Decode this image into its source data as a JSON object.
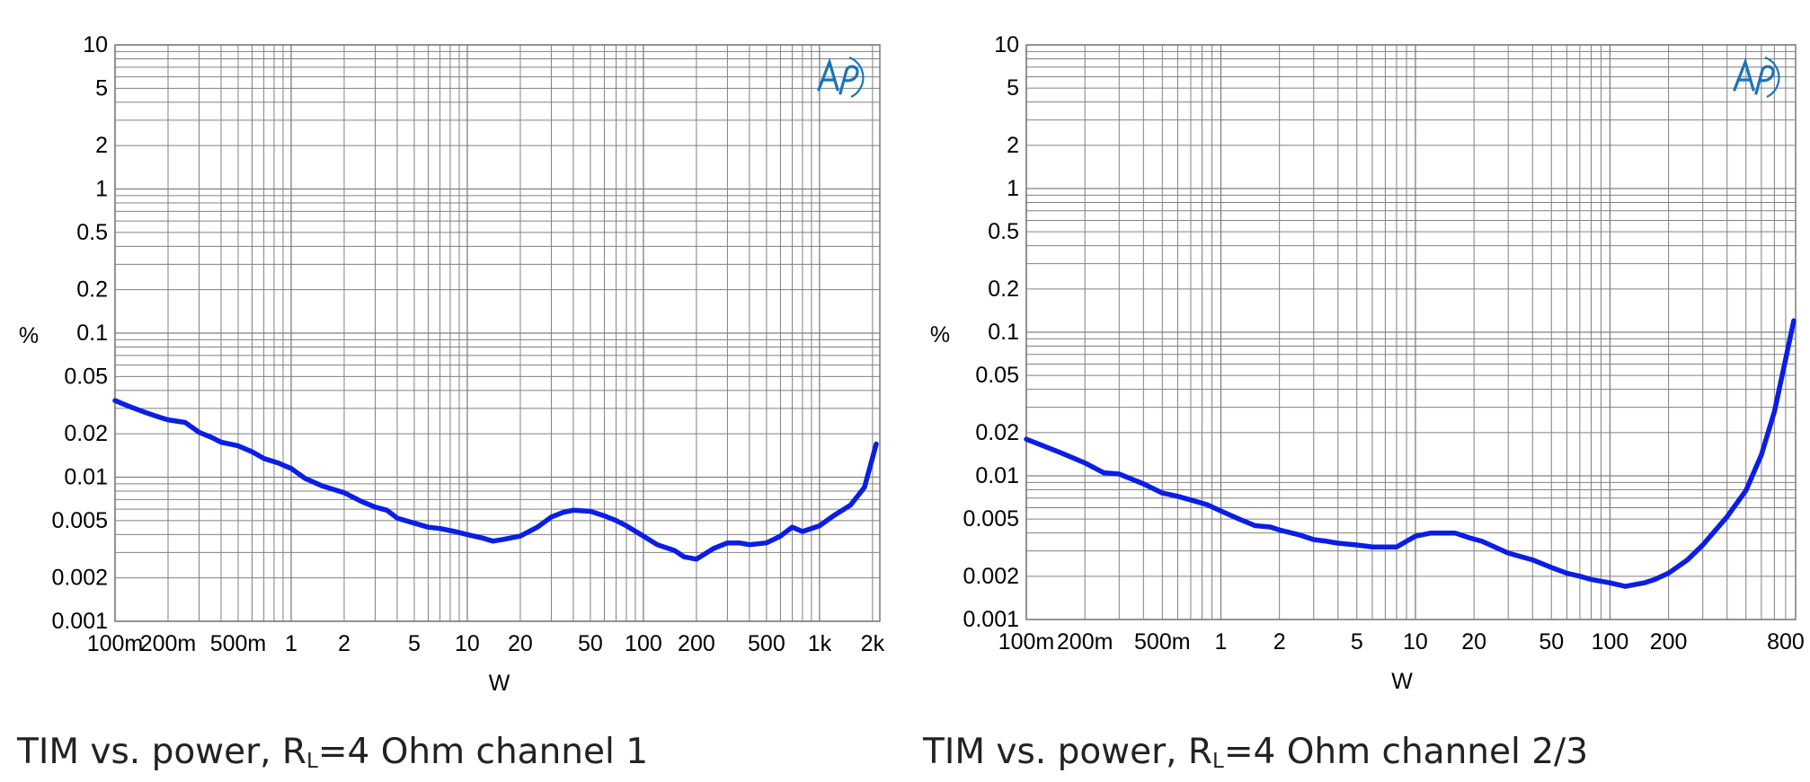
{
  "chart_data": [
    {
      "type": "line",
      "title": "",
      "xlabel": "W",
      "ylabel": "%",
      "x_scale": "log",
      "y_scale": "log",
      "xlim": [
        0.1,
        2200
      ],
      "ylim": [
        0.001,
        10
      ],
      "grid": true,
      "logo": "ap-logo",
      "x_ticks": [
        {
          "value": 0.1,
          "label": "100m"
        },
        {
          "value": 0.2,
          "label": "200m"
        },
        {
          "value": 0.5,
          "label": "500m"
        },
        {
          "value": 1,
          "label": "1"
        },
        {
          "value": 2,
          "label": "2"
        },
        {
          "value": 5,
          "label": "5"
        },
        {
          "value": 10,
          "label": "10"
        },
        {
          "value": 20,
          "label": "20"
        },
        {
          "value": 50,
          "label": "50"
        },
        {
          "value": 100,
          "label": "100"
        },
        {
          "value": 200,
          "label": "200"
        },
        {
          "value": 500,
          "label": "500"
        },
        {
          "value": 1000,
          "label": "1k"
        },
        {
          "value": 2000,
          "label": "2k"
        }
      ],
      "y_ticks": [
        {
          "value": 10,
          "label": "10"
        },
        {
          "value": 5,
          "label": "5"
        },
        {
          "value": 2,
          "label": "2"
        },
        {
          "value": 1,
          "label": "1"
        },
        {
          "value": 0.5,
          "label": "0.5"
        },
        {
          "value": 0.2,
          "label": "0.2"
        },
        {
          "value": 0.1,
          "label": "0.1"
        },
        {
          "value": 0.05,
          "label": "0.05"
        },
        {
          "value": 0.02,
          "label": "0.02"
        },
        {
          "value": 0.01,
          "label": "0.01"
        },
        {
          "value": 0.005,
          "label": "0.005"
        },
        {
          "value": 0.002,
          "label": "0.002"
        },
        {
          "value": 0.001,
          "label": "0.001"
        }
      ],
      "series": [
        {
          "color": "#0a1ee6",
          "x": [
            0.1,
            0.12,
            0.15,
            0.18,
            0.2,
            0.25,
            0.3,
            0.35,
            0.4,
            0.5,
            0.6,
            0.7,
            0.85,
            1.0,
            1.2,
            1.5,
            2.0,
            2.5,
            3.0,
            3.5,
            4.0,
            5.0,
            6.0,
            7.0,
            8.5,
            10,
            12,
            14,
            16,
            20,
            25,
            30,
            35,
            40,
            50,
            60,
            70,
            80,
            100,
            120,
            150,
            170,
            200,
            250,
            300,
            350,
            400,
            500,
            600,
            700,
            800,
            1000,
            1200,
            1500,
            1800,
            2100
          ],
          "values": [
            0.034,
            0.031,
            0.028,
            0.026,
            0.025,
            0.024,
            0.0205,
            0.019,
            0.0175,
            0.0165,
            0.015,
            0.0135,
            0.0125,
            0.0115,
            0.0098,
            0.0087,
            0.0078,
            0.0068,
            0.0062,
            0.0059,
            0.0052,
            0.0048,
            0.0045,
            0.0044,
            0.0042,
            0.004,
            0.0038,
            0.0036,
            0.0037,
            0.0039,
            0.0045,
            0.0053,
            0.0057,
            0.0059,
            0.0058,
            0.0054,
            0.005,
            0.0046,
            0.0039,
            0.0034,
            0.0031,
            0.0028,
            0.0027,
            0.0032,
            0.0035,
            0.0035,
            0.0034,
            0.0035,
            0.0039,
            0.0045,
            0.0042,
            0.0046,
            0.0054,
            0.0064,
            0.0085,
            0.017
          ]
        }
      ]
    },
    {
      "type": "line",
      "title": "",
      "xlabel": "W",
      "ylabel": "%",
      "x_scale": "log",
      "y_scale": "log",
      "xlim": [
        0.1,
        900
      ],
      "ylim": [
        0.001,
        10
      ],
      "grid": true,
      "logo": "ap-logo",
      "x_ticks": [
        {
          "value": 0.1,
          "label": "100m"
        },
        {
          "value": 0.2,
          "label": "200m"
        },
        {
          "value": 0.5,
          "label": "500m"
        },
        {
          "value": 1,
          "label": "1"
        },
        {
          "value": 2,
          "label": "2"
        },
        {
          "value": 5,
          "label": "5"
        },
        {
          "value": 10,
          "label": "10"
        },
        {
          "value": 20,
          "label": "20"
        },
        {
          "value": 50,
          "label": "50"
        },
        {
          "value": 100,
          "label": "100"
        },
        {
          "value": 200,
          "label": "200"
        },
        {
          "value": 800,
          "label": "800"
        }
      ],
      "y_ticks": [
        {
          "value": 10,
          "label": "10"
        },
        {
          "value": 5,
          "label": "5"
        },
        {
          "value": 2,
          "label": "2"
        },
        {
          "value": 1,
          "label": "1"
        },
        {
          "value": 0.5,
          "label": "0.5"
        },
        {
          "value": 0.2,
          "label": "0.2"
        },
        {
          "value": 0.1,
          "label": "0.1"
        },
        {
          "value": 0.05,
          "label": "0.05"
        },
        {
          "value": 0.02,
          "label": "0.02"
        },
        {
          "value": 0.01,
          "label": "0.01"
        },
        {
          "value": 0.005,
          "label": "0.005"
        },
        {
          "value": 0.002,
          "label": "0.002"
        },
        {
          "value": 0.001,
          "label": "0.001"
        }
      ],
      "series": [
        {
          "color": "#0a1ee6",
          "x": [
            0.1,
            0.15,
            0.2,
            0.25,
            0.3,
            0.4,
            0.5,
            0.6,
            0.7,
            0.85,
            1.0,
            1.2,
            1.5,
            1.8,
            2.0,
            2.5,
            3.0,
            3.5,
            4.0,
            5.0,
            6.0,
            7.0,
            8.0,
            9.0,
            10,
            12,
            14,
            16,
            19,
            22,
            30,
            40,
            50,
            60,
            70,
            80,
            100,
            120,
            150,
            170,
            200,
            250,
            300,
            400,
            500,
            600,
            700,
            800,
            880
          ],
          "values": [
            0.018,
            0.0145,
            0.0123,
            0.0105,
            0.0103,
            0.0088,
            0.0076,
            0.0072,
            0.0068,
            0.0063,
            0.0057,
            0.0051,
            0.0045,
            0.0044,
            0.0042,
            0.0039,
            0.0036,
            0.0035,
            0.0034,
            0.0033,
            0.0032,
            0.0032,
            0.0032,
            0.0035,
            0.0038,
            0.004,
            0.004,
            0.004,
            0.0037,
            0.0035,
            0.0029,
            0.0026,
            0.0023,
            0.0021,
            0.002,
            0.0019,
            0.0018,
            0.0017,
            0.0018,
            0.0019,
            0.0021,
            0.0026,
            0.0033,
            0.0052,
            0.0079,
            0.014,
            0.028,
            0.065,
            0.12
          ]
        }
      ]
    }
  ],
  "captions": [
    {
      "prefix": "TIM vs. power, R",
      "sub": "L",
      "suffix": "=4 Ohm channel 1"
    },
    {
      "prefix": "TIM vs. power, R",
      "sub": "L",
      "suffix": "=4 Ohm channel 2/3"
    }
  ],
  "colors": {
    "grid": "#808080",
    "frame": "#7a7a7a",
    "logo": "#1a74b8",
    "trace": "#0a1ee6"
  }
}
